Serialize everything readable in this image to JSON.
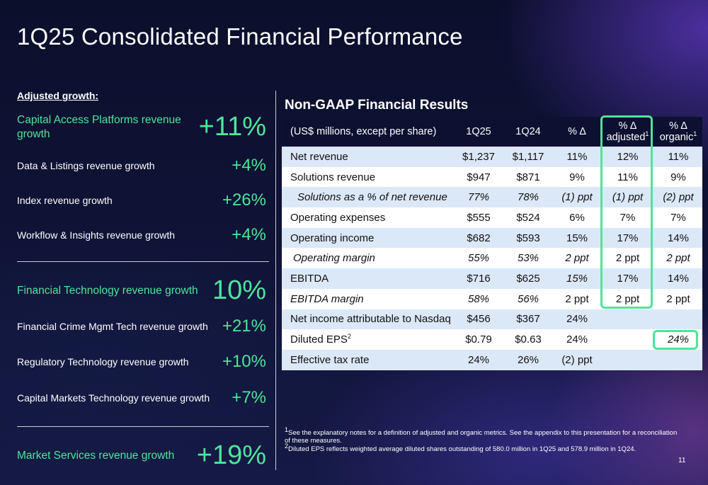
{
  "title": "1Q25 Consolidated Financial Performance",
  "left_panel": {
    "heading": "Adjusted growth:",
    "group1": [
      {
        "label": "Capital Access Platforms revenue growth",
        "value": "+11%"
      },
      {
        "label": "Data & Listings revenue growth",
        "value": "+4%"
      },
      {
        "label": "Index revenue growth",
        "value": "+26%"
      },
      {
        "label": "Workflow & Insights revenue growth",
        "value": "+4%"
      }
    ],
    "group2": [
      {
        "label": "Financial Technology revenue growth",
        "value": "10%"
      },
      {
        "label": "Financial Crime Mgmt Tech revenue growth",
        "value": "+21%"
      },
      {
        "label": "Regulatory Technology revenue growth",
        "value": "+10%"
      },
      {
        "label": "Capital Markets Technology revenue growth",
        "value": "+7%"
      }
    ],
    "group3": [
      {
        "label": "Market Services revenue growth",
        "value": "+19%"
      }
    ]
  },
  "table": {
    "title": "Non-GAAP Financial Results",
    "headers": {
      "label": "(US$ millions, except per share)",
      "c1": "1Q25",
      "c2": "1Q24",
      "c3": "% Δ",
      "c4_line1": "% Δ",
      "c4_line2": "adjusted",
      "c4_sup": "1",
      "c5_line1": "% Δ",
      "c5_line2": "organic",
      "c5_sup": "1"
    },
    "rows": [
      {
        "label": "Net revenue",
        "c1": "$1,237",
        "c2": "$1,117",
        "c3": "11%",
        "c4": "12%",
        "c5": "11%"
      },
      {
        "label": "Solutions revenue",
        "c1": "$947",
        "c2": "$871",
        "c3": "9%",
        "c4": "11%",
        "c5": "9%"
      },
      {
        "label": "Solutions as a % of net revenue",
        "c1": "77%",
        "c2": "78%",
        "c3": "(1) ppt",
        "c4": "(1) ppt",
        "c5": "(2) ppt"
      },
      {
        "label": "Operating expenses",
        "c1": "$555",
        "c2": "$524",
        "c3": "6%",
        "c4": "7%",
        "c5": "7%"
      },
      {
        "label": "Operating income",
        "c1": "$682",
        "c2": "$593",
        "c3": "15%",
        "c4": "17%",
        "c5": "14%"
      },
      {
        "label": "Operating margin",
        "c1": "55%",
        "c2": "53%",
        "c3": "2 ppt",
        "c4": "2 ppt",
        "c5": "2 ppt"
      },
      {
        "label": "EBITDA",
        "c1": "$716",
        "c2": "$625",
        "c3": "15%",
        "c4": "17%",
        "c5": "14%"
      },
      {
        "label": "EBITDA margin",
        "c1": "58%",
        "c2": "56%",
        "c3": "2 ppt",
        "c4": "2 ppt",
        "c5": "2 ppt"
      },
      {
        "label": "Net income attributable to Nasdaq",
        "c1": "$456",
        "c2": "$367",
        "c3": "24%",
        "c4": "",
        "c5": ""
      },
      {
        "label": "Diluted EPS",
        "label_sup": "2",
        "c1": "$0.79",
        "c2": "$0.63",
        "c3": "24%",
        "c4": "",
        "c5": "24%"
      },
      {
        "label": "Effective tax rate",
        "c1": "24%",
        "c2": "26%",
        "c3": "(2) ppt",
        "c4": "",
        "c5": ""
      }
    ]
  },
  "footnotes": {
    "n1_mark": "1",
    "n1": "See the explanatory notes for a definition of adjusted and organic metrics. See the appendix to this presentation for a reconciliation of these measures.",
    "n2_mark": "2",
    "n2": "Diluted EPS reflects weighted average diluted shares outstanding of 580.0 million in 1Q25 and 578.9 million in 1Q24."
  },
  "page_number": "11",
  "colors": {
    "accent_green": "#4ee49a",
    "row_blue": "#dbe8f8",
    "header_navy": "#0e1031"
  }
}
